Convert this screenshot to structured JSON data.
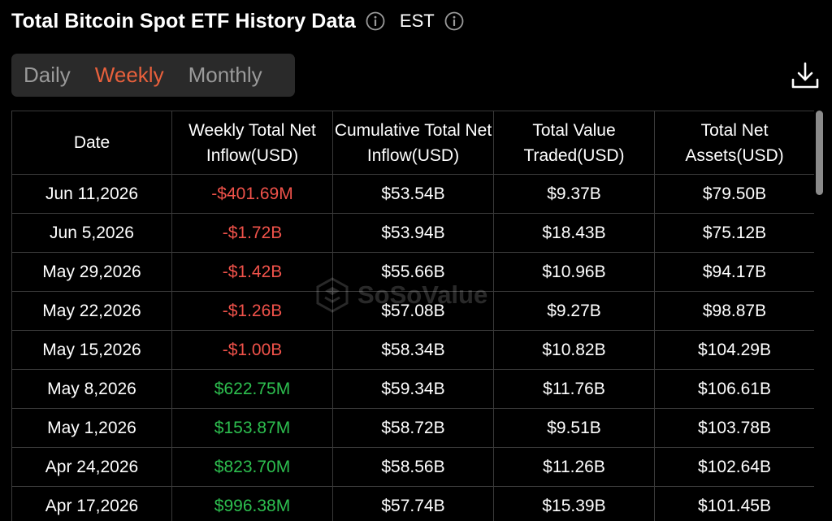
{
  "header": {
    "title": "Total Bitcoin Spot ETF History Data",
    "timezone": "EST",
    "info_icon": "info-circle-icon",
    "timezone_info_icon": "info-circle-icon"
  },
  "tabs": [
    {
      "label": "Daily",
      "active": false
    },
    {
      "label": "Weekly",
      "active": true
    },
    {
      "label": "Monthly",
      "active": false
    }
  ],
  "toolbar": {
    "download_icon": "download-icon"
  },
  "watermark": {
    "text": "SoSoValue"
  },
  "colors": {
    "accent": "#e8603c",
    "negative": "#f0524a",
    "positive": "#2dbf4f",
    "background": "#000000",
    "tab_bg": "#2a2a2a"
  },
  "table": {
    "headers": [
      "Date",
      "Weekly Total Net Inflow(USD)",
      "Cumulative Total Net Inflow(USD)",
      "Total Value Traded(USD)",
      "Total Net Assets(USD)"
    ],
    "rows": [
      {
        "date": "Jun 11,2026",
        "net_inflow": "-$401.69M",
        "trend": "neg",
        "cumulative": "$53.54B",
        "traded": "$9.37B",
        "assets": "$79.50B"
      },
      {
        "date": "Jun 5,2026",
        "net_inflow": "-$1.72B",
        "trend": "neg",
        "cumulative": "$53.94B",
        "traded": "$18.43B",
        "assets": "$75.12B"
      },
      {
        "date": "May 29,2026",
        "net_inflow": "-$1.42B",
        "trend": "neg",
        "cumulative": "$55.66B",
        "traded": "$10.96B",
        "assets": "$94.17B"
      },
      {
        "date": "May 22,2026",
        "net_inflow": "-$1.26B",
        "trend": "neg",
        "cumulative": "$57.08B",
        "traded": "$9.27B",
        "assets": "$98.87B"
      },
      {
        "date": "May 15,2026",
        "net_inflow": "-$1.00B",
        "trend": "neg",
        "cumulative": "$58.34B",
        "traded": "$10.82B",
        "assets": "$104.29B"
      },
      {
        "date": "May 8,2026",
        "net_inflow": "$622.75M",
        "trend": "pos",
        "cumulative": "$59.34B",
        "traded": "$11.76B",
        "assets": "$106.61B"
      },
      {
        "date": "May 1,2026",
        "net_inflow": "$153.87M",
        "trend": "pos",
        "cumulative": "$58.72B",
        "traded": "$9.51B",
        "assets": "$103.78B"
      },
      {
        "date": "Apr 24,2026",
        "net_inflow": "$823.70M",
        "trend": "pos",
        "cumulative": "$58.56B",
        "traded": "$11.26B",
        "assets": "$102.64B"
      },
      {
        "date": "Apr 17,2026",
        "net_inflow": "$996.38M",
        "trend": "pos",
        "cumulative": "$57.74B",
        "traded": "$15.39B",
        "assets": "$101.45B"
      }
    ]
  }
}
